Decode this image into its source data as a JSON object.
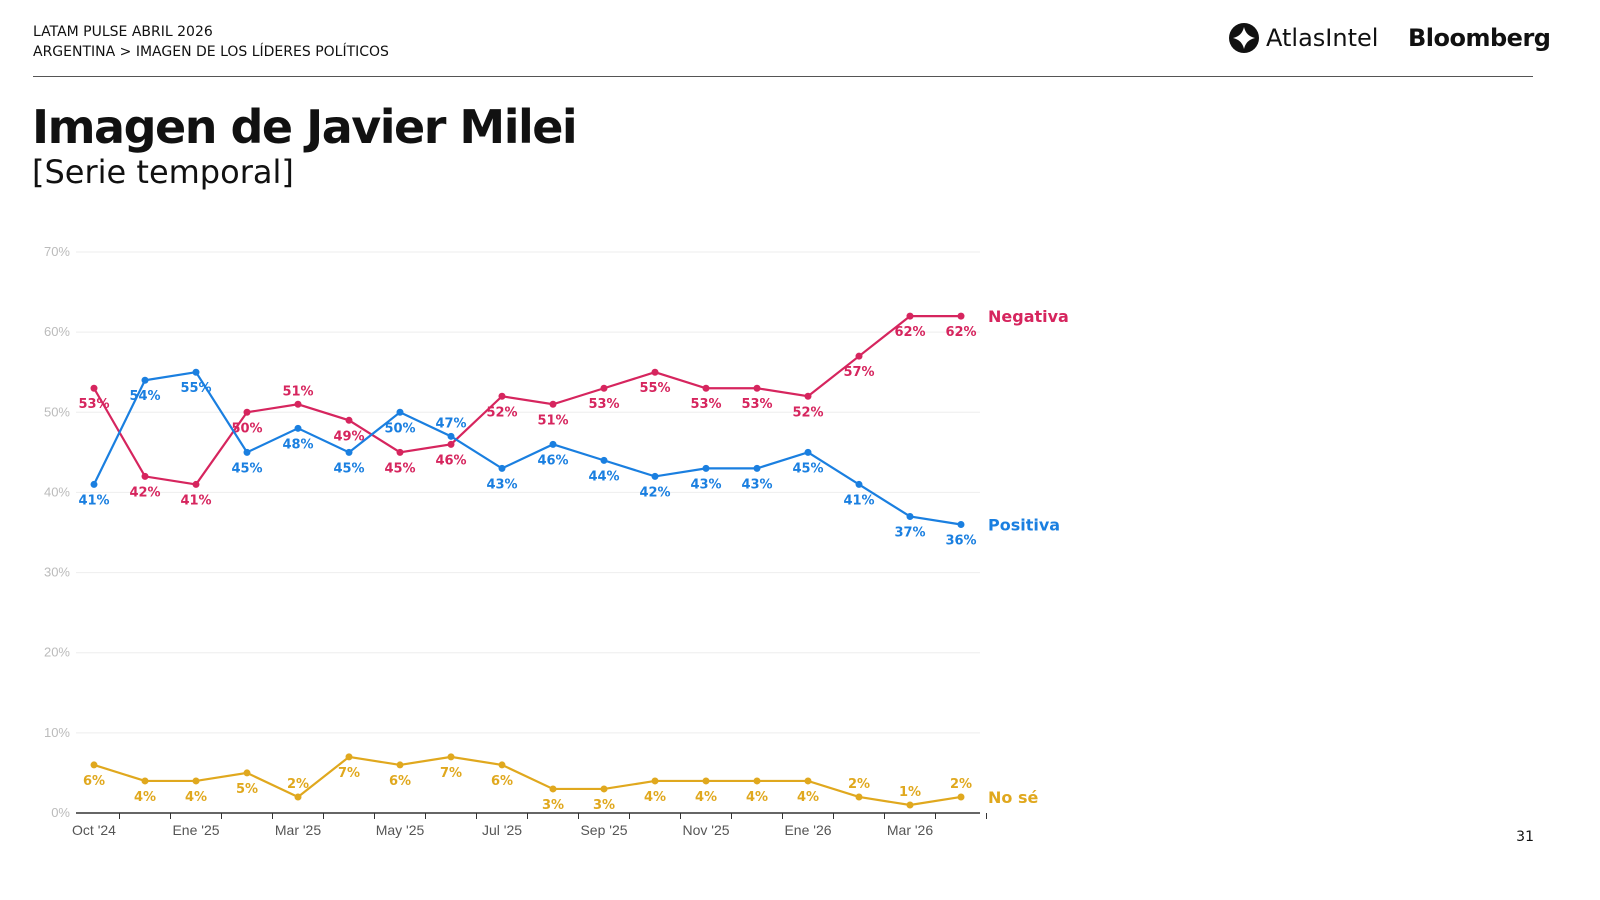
{
  "header": {
    "line1": "LATAM PULSE ABRIL 2026",
    "line2": "ARGENTINA > IMAGEN DE LOS LÍDERES POLÍTICOS"
  },
  "logos": {
    "atlas": "AtlasIntel",
    "bloomberg": "Bloomberg"
  },
  "title": "Imagen de Javier Milei",
  "subtitle": "[Serie temporal]",
  "page_number": "31",
  "chart_data": {
    "type": "line",
    "x_tick_labels": [
      "Oct '24",
      "",
      "Ene '25",
      "",
      "Mar '25",
      "",
      "May '25",
      "",
      "Jul '25",
      "",
      "Sep '25",
      "",
      "Nov '25",
      "",
      "Ene '26",
      "",
      "Mar '26",
      ""
    ],
    "ylim": [
      0,
      70
    ],
    "y_ticks": [
      "0%",
      "10%",
      "20%",
      "30%",
      "40%",
      "50%",
      "60%",
      "70%"
    ],
    "grid": true,
    "legend": "inline-right",
    "series": [
      {
        "name": "Negativa",
        "color": "#d6255e",
        "values": [
          53,
          42,
          41,
          50,
          51,
          49,
          45,
          46,
          52,
          51,
          53,
          55,
          53,
          53,
          52,
          57,
          62,
          62
        ]
      },
      {
        "name": "Positiva",
        "color": "#1a7fe0",
        "values": [
          41,
          54,
          55,
          45,
          48,
          45,
          50,
          47,
          43,
          46,
          44,
          42,
          43,
          43,
          45,
          41,
          37,
          36
        ]
      },
      {
        "name": "No sé",
        "color": "#e0a81e",
        "values": [
          6,
          4,
          4,
          5,
          2,
          7,
          6,
          7,
          6,
          3,
          3,
          4,
          4,
          4,
          4,
          2,
          1,
          2
        ]
      }
    ]
  }
}
